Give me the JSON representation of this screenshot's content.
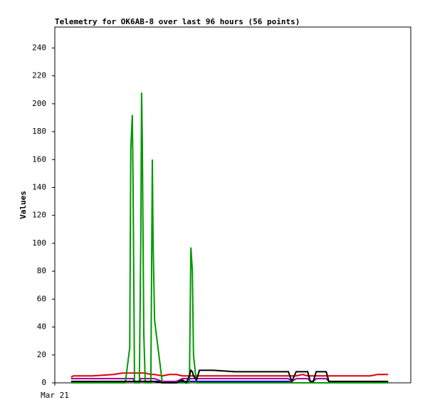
{
  "chart_data": {
    "type": "line",
    "title": "Telemetry for OK6AB-8 over last 96 hours (56 points)",
    "y_label": "Values",
    "x": [
      4.4,
      5.0,
      10.2,
      15.9,
      18.2,
      19.0,
      20.2,
      20.5,
      20.9,
      21.1,
      21.5,
      22.8,
      23.2,
      23.4,
      23.6,
      24.0,
      24.4,
      25.9,
      26.3,
      26.5,
      26.9,
      29.0,
      30.9,
      32.8,
      34.4,
      35.5,
      36.3,
      36.7,
      37.1,
      37.4,
      38.2,
      39.0,
      39.7,
      42.8,
      48.6,
      54.3,
      58.2,
      63.0,
      63.9,
      65.1,
      66.8,
      68.2,
      68.9,
      69.7,
      70.5,
      71.2,
      73.2,
      73.9,
      74.7,
      77.4,
      81.2,
      83.1,
      85.1,
      87.0,
      88.9,
      89.9
    ],
    "xlim": [
      0,
      96
    ],
    "xticks": [
      {
        "value": 0,
        "label": "Mar 21"
      }
    ],
    "ylim": [
      0,
      255
    ],
    "yticks": [
      0,
      20,
      40,
      60,
      80,
      100,
      120,
      140,
      160,
      180,
      200,
      220,
      240
    ],
    "series": [
      {
        "color": "#0000cc",
        "values": [
          1,
          1,
          1,
          1,
          1,
          1,
          1,
          1,
          1,
          1,
          1,
          1,
          1,
          1,
          1,
          1,
          1,
          1,
          1,
          1,
          1,
          1,
          1,
          1,
          1,
          1,
          1,
          1,
          1,
          1,
          1,
          1,
          1,
          1,
          1,
          1,
          1,
          1,
          0,
          0,
          0,
          0,
          0,
          0,
          0,
          0,
          0,
          0,
          0,
          0,
          0,
          0,
          0,
          0,
          0,
          0
        ]
      },
      {
        "color": "#990099",
        "values": [
          3,
          3,
          3,
          3,
          3,
          3,
          3,
          3,
          3,
          3,
          1,
          1,
          3,
          3,
          3,
          3,
          3,
          3,
          3,
          3,
          3,
          1,
          1,
          1,
          3,
          3,
          3,
          3,
          3,
          3,
          3,
          3,
          3,
          3,
          3,
          3,
          3,
          3,
          1,
          3,
          3,
          3,
          1,
          1,
          3,
          3,
          3,
          1,
          1,
          1,
          1,
          1,
          1,
          1,
          1,
          1
        ]
      },
      {
        "color": "#dd0000",
        "values": [
          4,
          5,
          5,
          6,
          7,
          7,
          7,
          7,
          7,
          7,
          7,
          7,
          7,
          7,
          7,
          7,
          7,
          6,
          6,
          6,
          6,
          5,
          6,
          6,
          5,
          5,
          5,
          5,
          5,
          5,
          5,
          5,
          5,
          5,
          5,
          5,
          5,
          5,
          5,
          5,
          6,
          5,
          5,
          5,
          5,
          5,
          5,
          5,
          5,
          5,
          5,
          5,
          5,
          6,
          6,
          6
        ]
      },
      {
        "color": "#009900",
        "values": [
          0,
          0,
          0,
          0,
          0,
          0,
          25,
          168,
          192,
          145,
          0,
          0,
          105,
          208,
          173,
          35,
          0,
          0,
          160,
          103,
          45,
          0,
          0,
          0,
          0,
          0,
          0,
          97,
          80,
          20,
          0,
          0,
          0,
          0,
          0,
          0,
          0,
          0,
          0,
          0,
          0,
          0,
          0,
          0,
          0,
          0,
          0,
          0,
          0,
          0,
          0,
          0,
          0,
          0,
          0,
          0
        ]
      },
      {
        "color": "#000000",
        "values": [
          1,
          1,
          1,
          1,
          1,
          1,
          1,
          1,
          1,
          1,
          1,
          1,
          1,
          1,
          1,
          1,
          1,
          1,
          1,
          1,
          1,
          0,
          0,
          0,
          2,
          0,
          5,
          9,
          8,
          5,
          2,
          9,
          9,
          9,
          8,
          8,
          8,
          8,
          1,
          8,
          8,
          8,
          1,
          1,
          8,
          8,
          8,
          1,
          1,
          1,
          1,
          1,
          1,
          1,
          1,
          1
        ]
      }
    ]
  }
}
